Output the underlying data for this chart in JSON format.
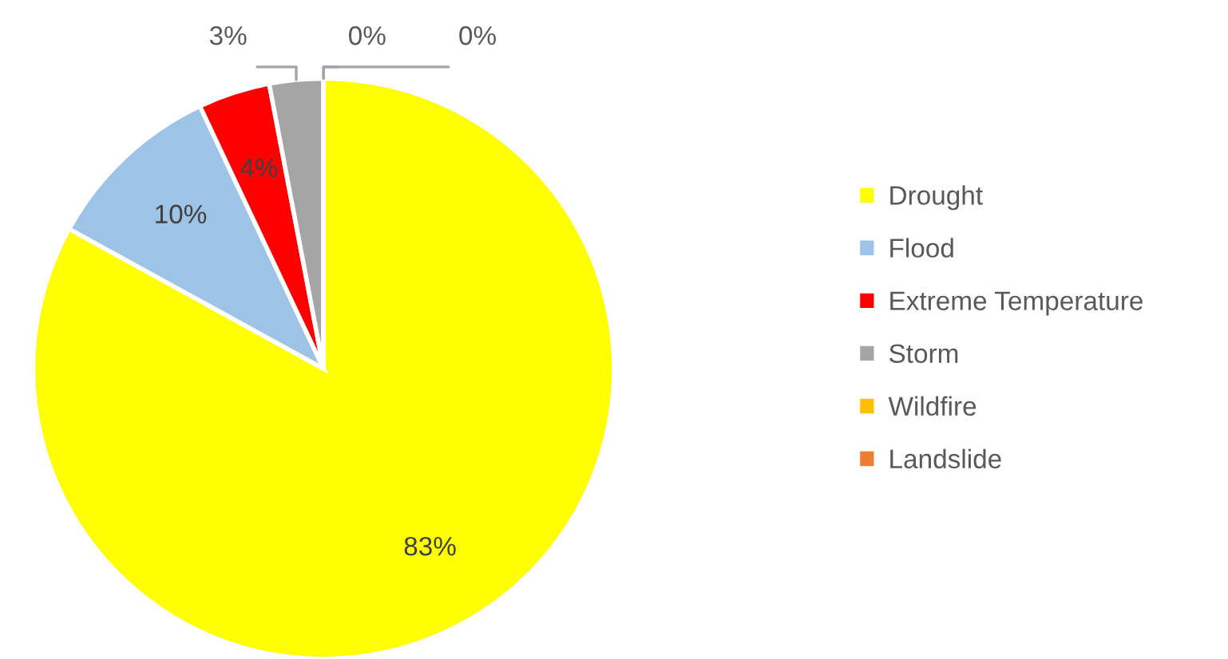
{
  "chart_data": {
    "type": "pie",
    "categories": [
      "Drought",
      "Flood",
      "Extreme Temperature",
      "Storm",
      "Wildfire",
      "Landslide"
    ],
    "values": [
      83,
      10,
      4,
      3,
      0,
      0
    ],
    "colors": [
      "#ffff00",
      "#9dc3e6",
      "#ff0000",
      "#a5a5a5",
      "#ffc000",
      "#ed7d31"
    ],
    "value_labels": [
      "83%",
      "10%",
      "4%",
      "3%",
      "0%",
      "0%"
    ],
    "legend": "right"
  }
}
